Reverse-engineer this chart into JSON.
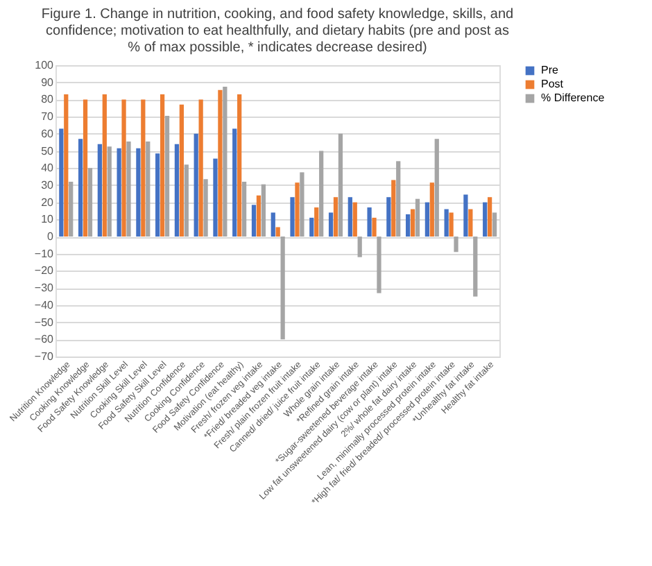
{
  "chart_data": {
    "type": "bar",
    "title": "Figure 1. Change in nutrition, cooking, and food safety knowledge, skills, and confidence; motivation to eat healthfully, and dietary habits (pre and post as % of max possible, * indicates decrease desired)",
    "categories": [
      "Nutrition Knowledge",
      "Cooking Knowledge",
      "Food Safety Knowledge",
      "Nutrition Skill Level",
      "Cooking Skill Level",
      "Food Safety Skill Level",
      "Nutrition Confidence",
      "Cooking Confidence",
      "Food Safety Confidence",
      "Motivation (eat healthy)",
      "Fresh/ frozen veg intake",
      "*Fried/ breaded veg intake",
      "Fresh/ plain frozen fruit intake",
      "Canned/ dried/ juice fruit intake",
      "Whole grain intake",
      "*Refined grain intake",
      "*Sugar-sweetened beverage intake",
      "Low fat unsweetened dairy (cow or plant) intake",
      "2%/ whole fat dairy intake",
      "Lean, minimally processed protein intake",
      "*High fat/ fried/ breaded/ processed protein intake",
      "*Unhealthy fat intake",
      "Healthy fat intake"
    ],
    "series": [
      {
        "name": "Pre",
        "color": "#4472c4",
        "values": [
          63,
          57,
          54,
          51.5,
          51.5,
          48.5,
          54,
          60,
          45.5,
          63,
          18.5,
          14,
          23,
          11,
          14,
          23,
          17,
          23,
          13,
          20,
          16,
          24.5,
          20
        ]
      },
      {
        "name": "Post",
        "color": "#ed7d31",
        "values": [
          83,
          80,
          83,
          80,
          80,
          83,
          77,
          80,
          85.5,
          83,
          24,
          5.5,
          31.5,
          17,
          23,
          20,
          11,
          33,
          16,
          31.5,
          14,
          16,
          23
        ]
      },
      {
        "name": "% Difference",
        "color": "#a5a5a5",
        "values": [
          32,
          40,
          52.5,
          55.5,
          55.5,
          70.5,
          42,
          33.5,
          87.5,
          32,
          30.5,
          -60,
          37.5,
          50,
          60,
          -12,
          -33,
          44,
          22,
          57,
          -9,
          -35,
          14
        ]
      }
    ],
    "ylim": [
      -70,
      100
    ],
    "yticks": [
      -70,
      -60,
      -50,
      -40,
      -30,
      -20,
      -10,
      0,
      10,
      20,
      30,
      40,
      50,
      60,
      70,
      80,
      90,
      100
    ],
    "grid": "y",
    "legend": "right"
  }
}
